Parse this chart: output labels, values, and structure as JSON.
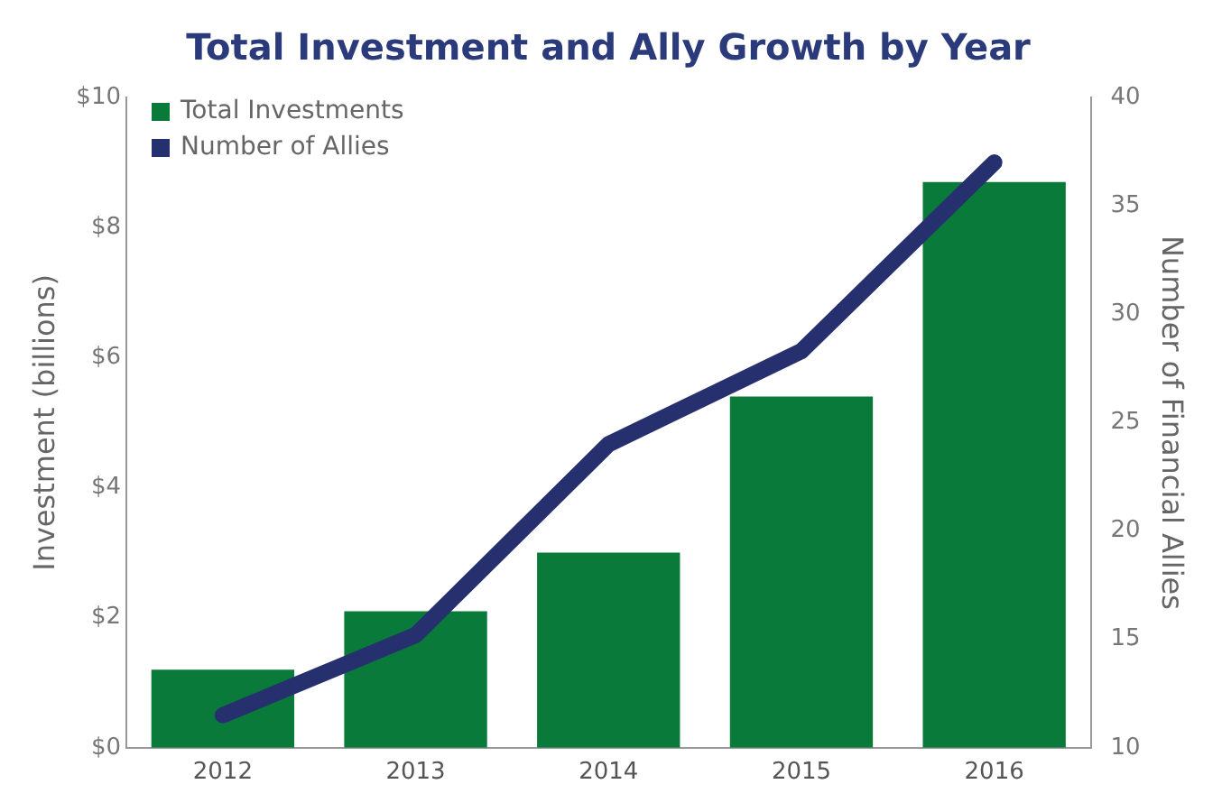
{
  "chart_data": {
    "type": "bar",
    "title": "Total Investment and Ally Growth by Year",
    "ylabel": "Investment (billions)",
    "y2label": "Number of Financial Allies",
    "categories": [
      "2012",
      "2013",
      "2014",
      "2015",
      "2016"
    ],
    "series": [
      {
        "name": "Total Investments",
        "color": "#0a7a3a",
        "values": [
          1.2,
          2.1,
          3.0,
          5.4,
          8.7
        ]
      },
      {
        "name": "Number of Allies",
        "type": "line",
        "color": "#27306e",
        "axis": "y2",
        "values": [
          11.5,
          15.2,
          24.0,
          28.3,
          37.0
        ]
      }
    ],
    "ylim": [
      0,
      10
    ],
    "yticks": [
      {
        "value": 0,
        "label": "$0"
      },
      {
        "value": 2,
        "label": "$2"
      },
      {
        "value": 4,
        "label": "$4"
      },
      {
        "value": 6,
        "label": "$6"
      },
      {
        "value": 8,
        "label": "$8"
      },
      {
        "value": 10,
        "label": "$10"
      }
    ],
    "y2lim": [
      10,
      40
    ],
    "y2ticks": [
      10,
      15,
      20,
      25,
      30,
      35,
      40
    ],
    "grid": false,
    "legend": "top left"
  }
}
